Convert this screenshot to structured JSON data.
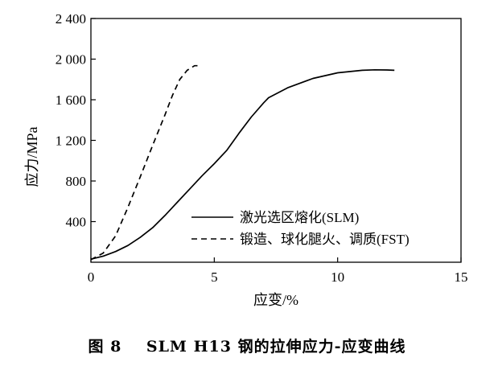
{
  "chart_data": {
    "type": "line",
    "xlabel": "应变/%",
    "ylabel": "应力/MPa",
    "xlim": [
      0,
      15
    ],
    "ylim": [
      0,
      2400
    ],
    "x_ticks": [
      0,
      5,
      10,
      15
    ],
    "x_tick_labels": [
      "0",
      "5",
      "10",
      "15"
    ],
    "y_ticks": [
      400,
      800,
      1200,
      1600,
      2000,
      2400
    ],
    "y_tick_labels": [
      "400",
      "800",
      "1 200",
      "1 600",
      "2 000",
      "2 400"
    ],
    "grid": false,
    "legend_position": "lower-right",
    "series": [
      {
        "name": "激光选区熔化(SLM)",
        "style": "solid",
        "color": "#000000",
        "x": [
          0.0,
          0.5,
          1.0,
          1.5,
          2.0,
          2.5,
          3.0,
          3.5,
          4.0,
          4.5,
          5.0,
          5.5,
          6.0,
          6.5,
          7.0,
          7.2,
          8.0,
          9.0,
          10.0,
          11.0,
          11.5,
          12.0,
          12.3
        ],
        "y": [
          30,
          60,
          105,
          165,
          245,
          340,
          460,
          590,
          720,
          850,
          970,
          1100,
          1270,
          1430,
          1570,
          1620,
          1720,
          1810,
          1865,
          1890,
          1895,
          1893,
          1890
        ]
      },
      {
        "name": "锻造、球化腿火、调质(FST)",
        "style": "dashed",
        "color": "#000000",
        "x": [
          0.0,
          0.5,
          1.0,
          1.5,
          2.0,
          2.5,
          3.0,
          3.3,
          3.6,
          3.9,
          4.2,
          4.4
        ],
        "y": [
          25,
          90,
          260,
          540,
          840,
          1150,
          1450,
          1640,
          1800,
          1890,
          1935,
          1935
        ]
      }
    ]
  },
  "caption": {
    "prefix": "图 8",
    "text": "SLM H13 钢的拉伸应力-应变曲线"
  }
}
